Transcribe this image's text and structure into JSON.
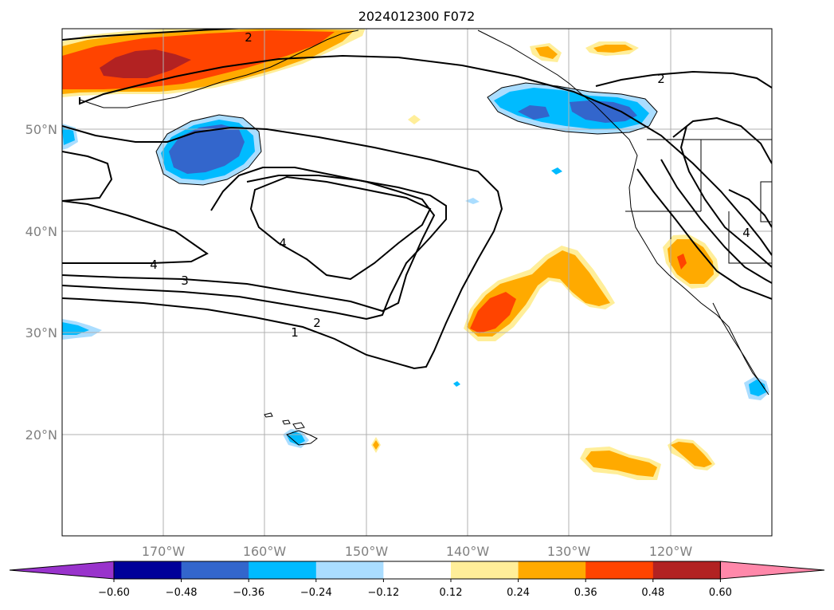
{
  "title": "2024012300 F072",
  "lat_labels": [
    "50°N",
    "40°N",
    "30°N",
    "20°N"
  ],
  "lon_labels": [
    "170°W",
    "160°W",
    "150°W",
    "140°W",
    "130°W",
    "120°W"
  ],
  "contour_labels": [
    "2",
    "4",
    "3",
    "2",
    "1",
    "4",
    "2",
    "4"
  ],
  "colorbar": {
    "tick_labels": [
      "−0.60",
      "−0.48",
      "−0.36",
      "−0.24",
      "−0.12",
      "0.12",
      "0.24",
      "0.36",
      "0.48",
      "0.60"
    ],
    "colors": [
      "#9933cc",
      "#000099",
      "#3366cc",
      "#00bbff",
      "#aaddff",
      "#ffffff",
      "#ffee99",
      "#ffaa00",
      "#ff4400",
      "#b22222",
      "#ff88aa"
    ]
  },
  "colors": {
    "dark_red": "#b22222",
    "red_orange": "#ff4400",
    "orange": "#ffaa00",
    "light_yellow": "#ffee99",
    "light_blue": "#aaddff",
    "cyan": "#00bbff",
    "medium_blue": "#3366cc"
  }
}
